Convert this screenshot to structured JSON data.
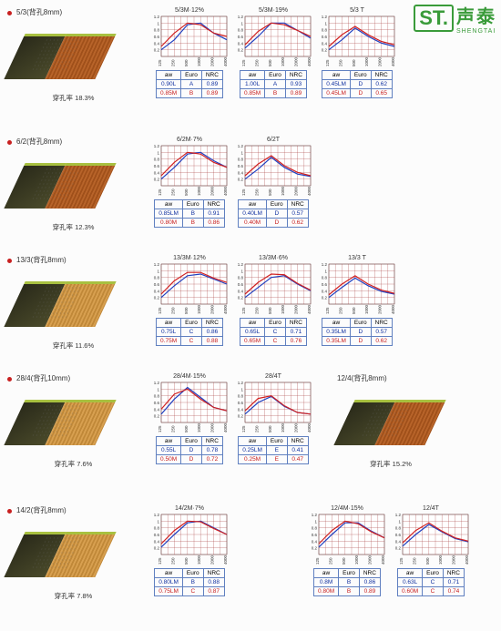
{
  "logo": {
    "st": "ST.",
    "cn": "声泰",
    "en": "SHENGTAI"
  },
  "xticks": [
    "125",
    "250",
    "500",
    "1000",
    "2000",
    "4000"
  ],
  "yticks": [
    "0.2",
    "0.4",
    "0.6",
    "0.8",
    "1",
    "1.2"
  ],
  "hz_label": "Hz",
  "rows": [
    {
      "title": "5/3(背孔8mm)",
      "rate": "穿孔率 18.3%",
      "wood": "wood1",
      "charts": [
        {
          "title": "5/3M·12%",
          "blue": [
            [
              0,
              0.2
            ],
            [
              1,
              0.5
            ],
            [
              2,
              0.95
            ],
            [
              3,
              1.0
            ],
            [
              4,
              0.7
            ],
            [
              5,
              0.5
            ]
          ],
          "red": [
            [
              0,
              0.3
            ],
            [
              1,
              0.7
            ],
            [
              2,
              1.0
            ],
            [
              3,
              0.95
            ],
            [
              4,
              0.7
            ],
            [
              5,
              0.6
            ]
          ],
          "aw": [
            "0.90L",
            "A",
            "0.89"
          ],
          "aw2": [
            "0.85M",
            "B",
            "0.89"
          ]
        },
        {
          "title": "5/3M·19%",
          "blue": [
            [
              0,
              0.25
            ],
            [
              1,
              0.6
            ],
            [
              2,
              1.0
            ],
            [
              3,
              1.0
            ],
            [
              4,
              0.78
            ],
            [
              5,
              0.55
            ]
          ],
          "red": [
            [
              0,
              0.35
            ],
            [
              1,
              0.75
            ],
            [
              2,
              1.0
            ],
            [
              3,
              0.95
            ],
            [
              4,
              0.78
            ],
            [
              5,
              0.6
            ]
          ],
          "aw": [
            "1.00L",
            "A",
            "0.93"
          ],
          "aw2": [
            "0.85M",
            "B",
            "0.89"
          ]
        },
        {
          "title": "5/3 T",
          "blue": [
            [
              0,
              0.2
            ],
            [
              1,
              0.5
            ],
            [
              2,
              0.85
            ],
            [
              3,
              0.6
            ],
            [
              4,
              0.4
            ],
            [
              5,
              0.3
            ]
          ],
          "red": [
            [
              0,
              0.3
            ],
            [
              1,
              0.65
            ],
            [
              2,
              0.9
            ],
            [
              3,
              0.65
            ],
            [
              4,
              0.45
            ],
            [
              5,
              0.35
            ]
          ],
          "aw": [
            "0.45LM",
            "D",
            "0.62"
          ],
          "aw2": [
            "0.45LM",
            "D",
            "0.65"
          ]
        }
      ]
    },
    {
      "title": "6/2(背孔8mm)",
      "rate": "穿孔率 12.3%",
      "wood": "wood1",
      "charts": [
        {
          "title": "6/2M·7%",
          "blue": [
            [
              0,
              0.2
            ],
            [
              1,
              0.55
            ],
            [
              2,
              0.95
            ],
            [
              3,
              1.0
            ],
            [
              4,
              0.75
            ],
            [
              5,
              0.55
            ]
          ],
          "red": [
            [
              0,
              0.3
            ],
            [
              1,
              0.7
            ],
            [
              2,
              1.0
            ],
            [
              3,
              0.95
            ],
            [
              4,
              0.7
            ],
            [
              5,
              0.55
            ]
          ],
          "aw": [
            "0.85LM",
            "B",
            "0.91"
          ],
          "aw2": [
            "0.80M",
            "B",
            "0.86"
          ]
        },
        {
          "title": "6/2T",
          "blue": [
            [
              0,
              0.2
            ],
            [
              1,
              0.5
            ],
            [
              2,
              0.85
            ],
            [
              3,
              0.55
            ],
            [
              4,
              0.35
            ],
            [
              5,
              0.28
            ]
          ],
          "red": [
            [
              0,
              0.3
            ],
            [
              1,
              0.65
            ],
            [
              2,
              0.9
            ],
            [
              3,
              0.6
            ],
            [
              4,
              0.4
            ],
            [
              5,
              0.3
            ]
          ],
          "aw": [
            "0.40LM",
            "D",
            "0.57"
          ],
          "aw2": [
            "0.40M",
            "D",
            "0.62"
          ]
        }
      ]
    },
    {
      "title": "13/3(背孔8mm)",
      "rate": "穿孔率 11.6%",
      "wood": "wood2",
      "charts": [
        {
          "title": "13/3M·12%",
          "blue": [
            [
              0,
              0.2
            ],
            [
              1,
              0.55
            ],
            [
              2,
              0.85
            ],
            [
              3,
              0.9
            ],
            [
              4,
              0.75
            ],
            [
              5,
              0.6
            ]
          ],
          "red": [
            [
              0,
              0.3
            ],
            [
              1,
              0.7
            ],
            [
              2,
              0.95
            ],
            [
              3,
              0.95
            ],
            [
              4,
              0.78
            ],
            [
              5,
              0.65
            ]
          ],
          "aw": [
            "0.75L",
            "C",
            "0.86"
          ],
          "aw2": [
            "0.75M",
            "C",
            "0.88"
          ]
        },
        {
          "title": "13/3M·6%",
          "blue": [
            [
              0,
              0.2
            ],
            [
              1,
              0.5
            ],
            [
              2,
              0.8
            ],
            [
              3,
              0.85
            ],
            [
              4,
              0.6
            ],
            [
              5,
              0.4
            ]
          ],
          "red": [
            [
              0,
              0.3
            ],
            [
              1,
              0.65
            ],
            [
              2,
              0.9
            ],
            [
              3,
              0.88
            ],
            [
              4,
              0.62
            ],
            [
              5,
              0.42
            ]
          ],
          "aw": [
            "0.65L",
            "C",
            "0.71"
          ],
          "aw2": [
            "0.65M",
            "C",
            "0.76"
          ]
        },
        {
          "title": "13/3 T",
          "blue": [
            [
              0,
              0.2
            ],
            [
              1,
              0.5
            ],
            [
              2,
              0.78
            ],
            [
              3,
              0.55
            ],
            [
              4,
              0.38
            ],
            [
              5,
              0.3
            ]
          ],
          "red": [
            [
              0,
              0.28
            ],
            [
              1,
              0.6
            ],
            [
              2,
              0.85
            ],
            [
              3,
              0.6
            ],
            [
              4,
              0.42
            ],
            [
              5,
              0.32
            ]
          ],
          "aw": [
            "0.35LM",
            "D",
            "0.57"
          ],
          "aw2": [
            "0.35LM",
            "D",
            "0.62"
          ]
        }
      ]
    },
    {
      "title": "28/4(背孔10mm)",
      "rate": "穿孔率 7.6%",
      "wood": "wood2",
      "charts": [
        {
          "title": "28/4M·15%",
          "blue": [
            [
              0,
              0.25
            ],
            [
              1,
              0.7
            ],
            [
              2,
              1.05
            ],
            [
              3,
              0.75
            ],
            [
              4,
              0.45
            ],
            [
              5,
              0.35
            ]
          ],
          "red": [
            [
              0,
              0.4
            ],
            [
              1,
              0.85
            ],
            [
              2,
              1.0
            ],
            [
              3,
              0.7
            ],
            [
              4,
              0.45
            ],
            [
              5,
              0.35
            ]
          ],
          "aw": [
            "0.55L",
            "D",
            "0.78"
          ],
          "aw2": [
            "0.50M",
            "D",
            "0.72"
          ]
        },
        {
          "title": "28/4T",
          "blue": [
            [
              0,
              0.25
            ],
            [
              1,
              0.6
            ],
            [
              2,
              0.78
            ],
            [
              3,
              0.48
            ],
            [
              4,
              0.3
            ],
            [
              5,
              0.25
            ]
          ],
          "red": [
            [
              0,
              0.35
            ],
            [
              1,
              0.72
            ],
            [
              2,
              0.8
            ],
            [
              3,
              0.5
            ],
            [
              4,
              0.3
            ],
            [
              5,
              0.25
            ]
          ],
          "aw": [
            "0.25LM",
            "E",
            "0.41"
          ],
          "aw2": [
            "0.25M",
            "E",
            "0.47"
          ]
        }
      ],
      "side": {
        "title": "12/4(背孔8mm)",
        "rate": "穿孔率 15.2%",
        "wood": "wood1"
      }
    },
    {
      "title": "14/2(背孔8mm)",
      "rate": "穿孔率 7.8%",
      "wood": "wood2",
      "charts": [
        {
          "title": "14/2M·7%",
          "blue": [
            [
              0,
              0.22
            ],
            [
              1,
              0.6
            ],
            [
              2,
              0.95
            ],
            [
              3,
              1.0
            ],
            [
              4,
              0.8
            ],
            [
              5,
              0.6
            ]
          ],
          "red": [
            [
              0,
              0.32
            ],
            [
              1,
              0.72
            ],
            [
              2,
              1.0
            ],
            [
              3,
              0.98
            ],
            [
              4,
              0.78
            ],
            [
              5,
              0.6
            ]
          ],
          "aw": [
            "0.80LM",
            "B",
            "0.88"
          ],
          "aw2": [
            "0.75LM",
            "C",
            "0.87"
          ]
        }
      ],
      "side_charts": [
        {
          "title": "12/4M·15%",
          "blue": [
            [
              0,
              0.22
            ],
            [
              1,
              0.6
            ],
            [
              2,
              0.95
            ],
            [
              3,
              0.95
            ],
            [
              4,
              0.7
            ],
            [
              5,
              0.5
            ]
          ],
          "red": [
            [
              0,
              0.32
            ],
            [
              1,
              0.72
            ],
            [
              2,
              1.0
            ],
            [
              3,
              0.92
            ],
            [
              4,
              0.68
            ],
            [
              5,
              0.5
            ]
          ],
          "aw": [
            "0.8M",
            "B",
            "0.86"
          ],
          "aw2": [
            "0.80M",
            "B",
            "0.89"
          ]
        },
        {
          "title": "12/4T",
          "blue": [
            [
              0,
              0.25
            ],
            [
              1,
              0.6
            ],
            [
              2,
              0.9
            ],
            [
              3,
              0.68
            ],
            [
              4,
              0.48
            ],
            [
              5,
              0.38
            ]
          ],
          "red": [
            [
              0,
              0.35
            ],
            [
              1,
              0.72
            ],
            [
              2,
              0.95
            ],
            [
              3,
              0.7
            ],
            [
              4,
              0.5
            ],
            [
              5,
              0.4
            ]
          ],
          "aw": [
            "0.63L",
            "C",
            "0.71"
          ],
          "aw2": [
            "0.60M",
            "C",
            "0.74"
          ]
        }
      ]
    }
  ],
  "table_head": [
    "aw",
    "Euro",
    "NRC"
  ],
  "colors": {
    "blue": "#2040c0",
    "red": "#d02020",
    "grid": "#a84040",
    "axis": "#333"
  }
}
